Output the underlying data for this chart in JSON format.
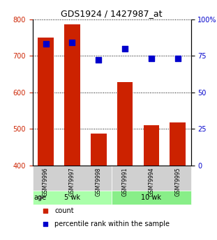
{
  "title": "GDS1924 / 1427987_at",
  "categories": [
    "GSM79996",
    "GSM79997",
    "GSM79998",
    "GSM79991",
    "GSM79994",
    "GSM79995"
  ],
  "bar_values": [
    750,
    785,
    488,
    628,
    510,
    518
  ],
  "percentile_values": [
    83,
    84,
    72,
    80,
    73,
    73
  ],
  "bar_color": "#cc2200",
  "dot_color": "#0000cc",
  "ylim_left": [
    400,
    800
  ],
  "ylim_right": [
    0,
    100
  ],
  "yticks_left": [
    400,
    500,
    600,
    700,
    800
  ],
  "yticks_right": [
    0,
    25,
    50,
    75,
    100
  ],
  "ytick_labels_right": [
    "0",
    "25",
    "50",
    "75",
    "100%"
  ],
  "groups": [
    {
      "label": "5 wk",
      "indices": [
        0,
        1,
        2
      ],
      "color": "#aaffaa"
    },
    {
      "label": "10 wk",
      "indices": [
        3,
        4,
        5
      ],
      "color": "#88ee88"
    }
  ],
  "age_label": "age",
  "legend_count_label": "count",
  "legend_percentile_label": "percentile rank within the sample",
  "grid_color": "#000000",
  "background_color": "#ffffff",
  "plot_bg_color": "#ffffff"
}
